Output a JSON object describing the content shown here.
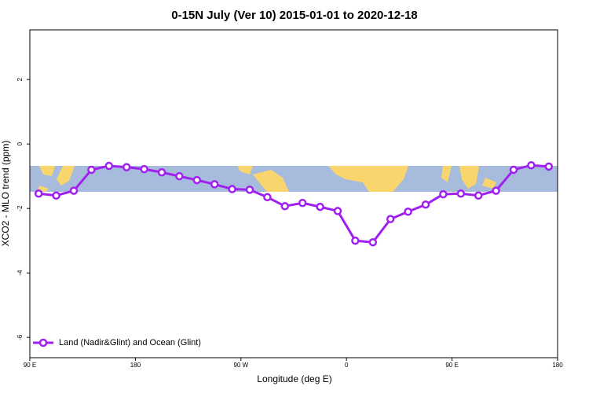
{
  "chart_data": {
    "type": "line",
    "title": "0-15N July (Ver 10)   2015-01-01 to 2020-12-18",
    "x_label": "Longitude (deg E)",
    "y_label": "XCO2 - MLO trend (ppm)",
    "x": [
      97.5,
      112.5,
      127.5,
      142.5,
      157.5,
      172.5,
      187.5,
      202.5,
      217.5,
      232.5,
      247.5,
      262.5,
      277.5,
      292.5,
      307.5,
      322.5,
      337.5,
      352.5,
      367.5,
      382.5,
      397.5,
      412.5,
      427.5,
      442.5,
      457.5,
      472.5,
      487.5,
      502.5,
      517.5,
      532.5
    ],
    "series": [
      {
        "name": "Land (Nadir&Glint) and Ocean (Glint)",
        "color": "#a020f0",
        "values": [
          -1.54,
          -1.6,
          -1.45,
          -0.8,
          -0.68,
          -0.72,
          -0.78,
          -0.88,
          -1.0,
          -1.12,
          -1.25,
          -1.4,
          -1.42,
          -1.65,
          -1.93,
          -1.83,
          -1.95,
          -2.08,
          -3.0,
          -3.05,
          -2.33,
          -2.1,
          -1.88,
          -1.56,
          -1.54,
          -1.6,
          -1.45,
          -0.8,
          -0.66,
          -0.7
        ]
      }
    ],
    "xlim": [
      90,
      540
    ],
    "xticks": [
      {
        "value": 90,
        "label": "90 E"
      },
      {
        "value": 180,
        "label": "180"
      },
      {
        "value": 270,
        "label": "90 W"
      },
      {
        "value": 360,
        "label": "0"
      },
      {
        "value": 450,
        "label": "90 E"
      },
      {
        "value": 540,
        "label": "180"
      }
    ],
    "ylim": [
      -6.63,
      3.54
    ],
    "yticks": [
      -6,
      -4,
      -2,
      0,
      2
    ],
    "legend": "bottom-left"
  }
}
